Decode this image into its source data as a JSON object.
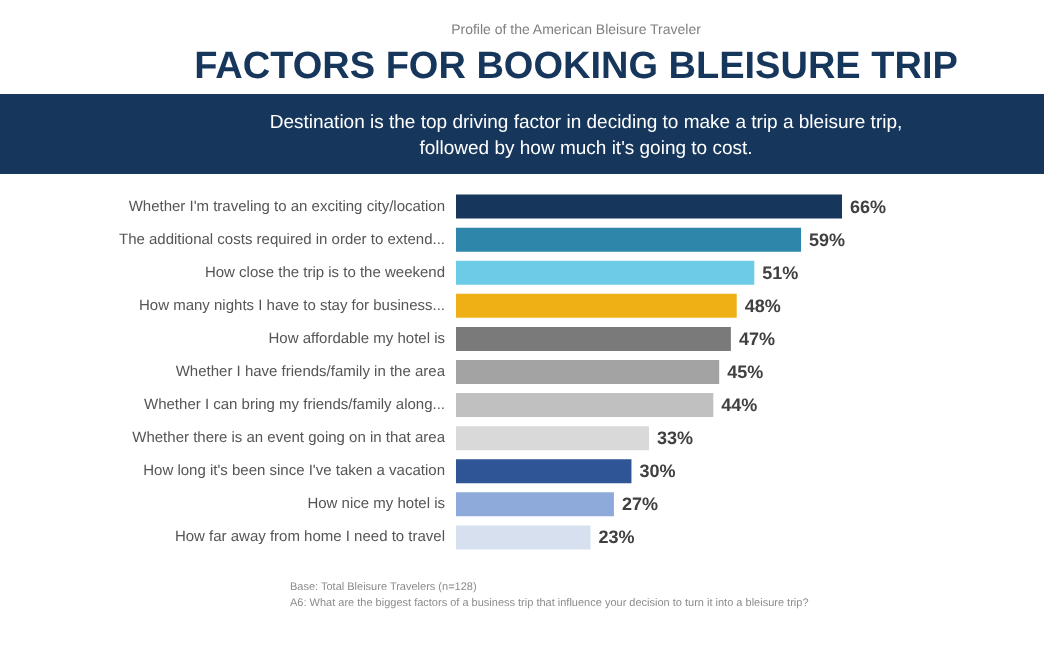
{
  "chart_data": {
    "type": "bar",
    "orientation": "horizontal",
    "title": "FACTORS FOR BOOKING BLEISURE TRIP",
    "subtitle": "Destination is the top driving factor in deciding to make a trip a bleisure trip, followed by how much it's going to cost.",
    "categories": [
      "Whether I'm traveling to an exciting city/location",
      "The additional costs required in order to extend...",
      "How close the trip is to the weekend",
      "How many nights I have to stay for business...",
      "How affordable my hotel is",
      "Whether I have friends/family in the area",
      "Whether I can bring my friends/family along...",
      "Whether there is an event going on in that area",
      "How long it's been since I've taken a vacation",
      "How nice my hotel is",
      "How far away from home I need to travel"
    ],
    "values": [
      66,
      59,
      51,
      48,
      47,
      45,
      44,
      33,
      30,
      27,
      23
    ],
    "value_labels": [
      "66%",
      "59%",
      "51%",
      "48%",
      "47%",
      "45%",
      "44%",
      "33%",
      "30%",
      "27%",
      "23%"
    ],
    "colors": [
      "#16365c",
      "#2e86ab",
      "#6ccbe6",
      "#efb015",
      "#7a7a7a",
      "#a3a3a3",
      "#c0c0c0",
      "#d9d9d9",
      "#2f5597",
      "#8eaadb",
      "#d6e0ef"
    ],
    "annotations": [
      "Profile of the American Bleisure Traveler",
      "Base: Total Bleisure Travelers (n=128)",
      "A6: What are the biggest factors of a business trip that influence your decision to turn it into a bleisure trip?"
    ]
  }
}
